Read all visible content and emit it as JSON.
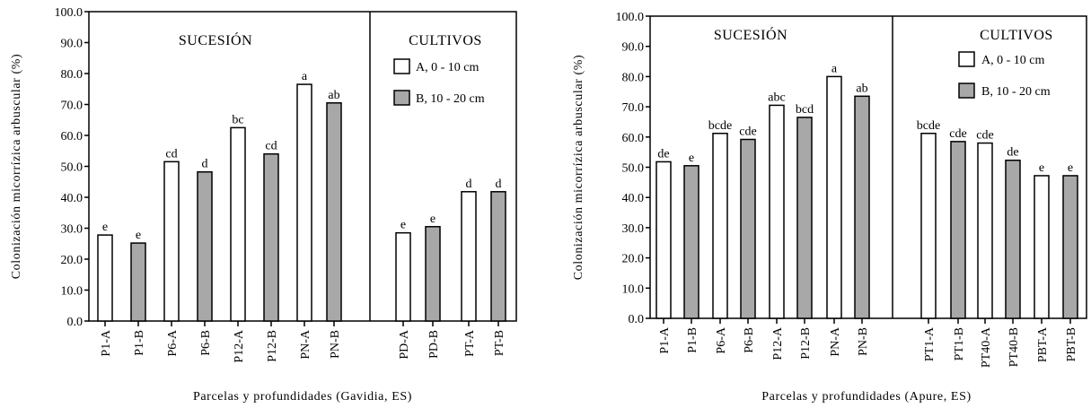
{
  "chart_data": [
    {
      "type": "bar",
      "ylabel": "Colonización micorrízica arbuscular (%)",
      "xlabel": "Parcelas y profundidades (Gavidia, ES)",
      "ylim": [
        0,
        100
      ],
      "yticks": [
        "0.0",
        "10.0",
        "20.0",
        "30.0",
        "40.0",
        "50.0",
        "60.0",
        "70.0",
        "80.0",
        "90.0",
        "100.0"
      ],
      "groups": [
        {
          "title": "SUCESIÓN",
          "categories": [
            "P1-A",
            "P1-B",
            "P6-A",
            "P6-B",
            "P12-A",
            "P12-B",
            "PN-A",
            "PN-B"
          ],
          "values": [
            27.8,
            25.2,
            51.5,
            48.2,
            62.5,
            54.0,
            76.5,
            70.5
          ],
          "labels": [
            "e",
            "e",
            "cd",
            "d",
            "bc",
            "cd",
            "a",
            "ab"
          ],
          "series": [
            "A",
            "B",
            "A",
            "B",
            "A",
            "B",
            "A",
            "B"
          ]
        },
        {
          "title": "CULTIVOS",
          "categories": [
            "PD-A",
            "PD-B",
            "PT-A",
            "PT-B"
          ],
          "values": [
            28.5,
            30.5,
            41.8,
            41.8
          ],
          "labels": [
            "e",
            "e",
            "d",
            "d"
          ],
          "series": [
            "A",
            "B",
            "A",
            "B"
          ]
        }
      ],
      "legend": [
        {
          "key": "A",
          "label": "A, 0 - 10 cm",
          "color": "#ffffff"
        },
        {
          "key": "B",
          "label": "B, 10 - 20 cm",
          "color": "#a8a8a8"
        }
      ],
      "grid": false,
      "legend_position": "top-right"
    },
    {
      "type": "bar",
      "ylabel": "Colonización micorrízica arbuscular (%)",
      "xlabel": "Parcelas y profundidades (Apure, ES)",
      "ylim": [
        0,
        100
      ],
      "yticks": [
        "0.0",
        "10.0",
        "20.0",
        "30.0",
        "40.0",
        "50.0",
        "60.0",
        "70.0",
        "80.0",
        "90.0",
        "100.0"
      ],
      "groups": [
        {
          "title": "SUCESIÓN",
          "categories": [
            "P1-A",
            "P1-B",
            "P6-A",
            "P6-B",
            "P12-A",
            "P12-B",
            "PN-A",
            "PN-B"
          ],
          "values": [
            51.8,
            50.5,
            61.2,
            59.2,
            70.5,
            66.5,
            80.0,
            73.5
          ],
          "labels": [
            "de",
            "e",
            "bcde",
            "cde",
            "abc",
            "bcd",
            "a",
            "ab"
          ],
          "series": [
            "A",
            "B",
            "A",
            "B",
            "A",
            "B",
            "A",
            "B"
          ]
        },
        {
          "title": "CULTIVOS",
          "categories": [
            "PT1-A",
            "PT1-B",
            "PT40-A",
            "PT40-B",
            "PBT-A",
            "PBT-B"
          ],
          "values": [
            61.2,
            58.5,
            58.0,
            52.3,
            47.2,
            47.2
          ],
          "labels": [
            "bcde",
            "cde",
            "cde",
            "de",
            "e",
            "e"
          ],
          "series": [
            "A",
            "B",
            "A",
            "B",
            "A",
            "B"
          ]
        }
      ],
      "legend": [
        {
          "key": "A",
          "label": "A, 0 - 10 cm",
          "color": "#ffffff"
        },
        {
          "key": "B",
          "label": "B, 10 - 20 cm",
          "color": "#a8a8a8"
        }
      ],
      "grid": false,
      "legend_position": "top-right"
    }
  ]
}
